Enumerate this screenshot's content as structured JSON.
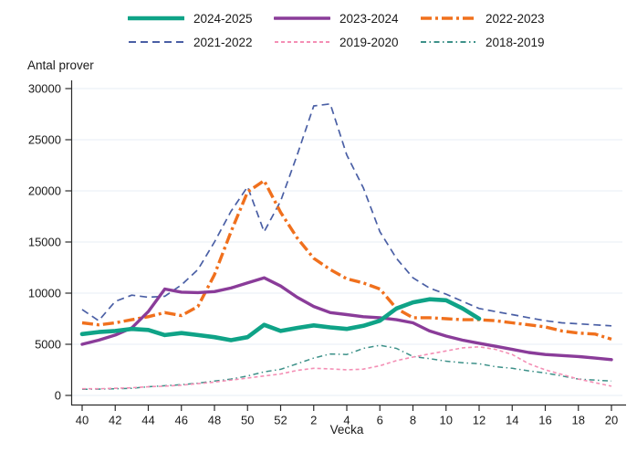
{
  "figure": {
    "y_axis_title": "Antal prover",
    "x_axis_title": "Vecka"
  },
  "chart_data": {
    "type": "line",
    "title": "",
    "ylabel": "Antal prover",
    "xlabel": "Vecka",
    "ylim": [
      0,
      30000
    ],
    "y_ticks": [
      0,
      5000,
      10000,
      15000,
      20000,
      25000,
      30000
    ],
    "x_ticks": [
      40,
      42,
      44,
      46,
      48,
      50,
      52,
      2,
      4,
      6,
      8,
      10,
      12,
      14,
      16,
      18,
      20
    ],
    "x_categories": [
      40,
      41,
      42,
      43,
      44,
      45,
      46,
      47,
      48,
      49,
      50,
      51,
      52,
      1,
      2,
      3,
      4,
      5,
      6,
      7,
      8,
      9,
      10,
      11,
      12,
      13,
      14,
      15,
      16,
      17,
      18,
      19,
      20
    ],
    "grid": "horizontal",
    "gridline_color": "#e7edf4",
    "axis_color": "#2b2b2b",
    "legend_position": "top",
    "series": [
      {
        "name": "2024-2025",
        "color": "#0fa387",
        "style": "solid",
        "width": 4.6,
        "dash": "",
        "values": [
          6000,
          6200,
          6300,
          6500,
          6400,
          5900,
          6100,
          5900,
          5700,
          5400,
          5700,
          6900,
          6300,
          6600,
          6850,
          6650,
          6500,
          6800,
          7300,
          8500,
          9100,
          9400,
          9300,
          8500,
          7500
        ]
      },
      {
        "name": "2023-2024",
        "color": "#8a3c99",
        "style": "solid",
        "width": 3.4,
        "dash": "",
        "values": [
          5000,
          5400,
          5900,
          6600,
          8200,
          10400,
          10100,
          10050,
          10150,
          10500,
          11000,
          11500,
          10700,
          9600,
          8700,
          8100,
          7900,
          7700,
          7600,
          7400,
          7100,
          6300,
          5800,
          5400,
          5100,
          4800,
          4500,
          4200,
          4000,
          3900,
          3800,
          3650,
          3500
        ]
      },
      {
        "name": "2022-2023",
        "color": "#f0701d",
        "style": "dash-dot",
        "width": 3.4,
        "dash": "12 4 3 4",
        "values": [
          7100,
          6900,
          7100,
          7400,
          7700,
          8100,
          7800,
          8700,
          11800,
          16000,
          19900,
          21000,
          17900,
          15400,
          13400,
          12300,
          11400,
          11000,
          10400,
          8500,
          7600,
          7600,
          7500,
          7400,
          7400,
          7300,
          7100,
          6900,
          6700,
          6300,
          6100,
          6000,
          5500
        ]
      },
      {
        "name": "2021-2022",
        "color": "#4a5fa5",
        "style": "dashed",
        "width": 1.7,
        "dash": "8 5",
        "values": [
          8400,
          7300,
          9200,
          9800,
          9600,
          9700,
          10800,
          12300,
          15000,
          18000,
          20400,
          16000,
          19000,
          23500,
          28300,
          28500,
          23500,
          20300,
          16000,
          13400,
          11500,
          10500,
          9900,
          9200,
          8500,
          8200,
          7900,
          7600,
          7300,
          7100,
          7000,
          6900,
          6800
        ]
      },
      {
        "name": "2019-2020",
        "color": "#f48fb5",
        "style": "short-dash",
        "width": 1.6,
        "dash": "4 3",
        "values": [
          650,
          650,
          700,
          750,
          850,
          900,
          1000,
          1150,
          1300,
          1500,
          1700,
          1900,
          2100,
          2450,
          2650,
          2600,
          2500,
          2570,
          2900,
          3400,
          3750,
          4050,
          4350,
          4650,
          4750,
          4500,
          4000,
          3100,
          2500,
          2050,
          1600,
          1250,
          900
        ]
      },
      {
        "name": "2018-2019",
        "color": "#3d9189",
        "style": "dash-dot-small",
        "width": 1.5,
        "dash": "6 3.5 1.5 3.5",
        "values": [
          600,
          620,
          650,
          700,
          850,
          950,
          1050,
          1200,
          1400,
          1600,
          1900,
          2300,
          2550,
          3100,
          3650,
          4050,
          4000,
          4600,
          4900,
          4600,
          3800,
          3600,
          3350,
          3200,
          3100,
          2800,
          2650,
          2400,
          2200,
          1900,
          1600,
          1500,
          1400
        ]
      }
    ]
  }
}
